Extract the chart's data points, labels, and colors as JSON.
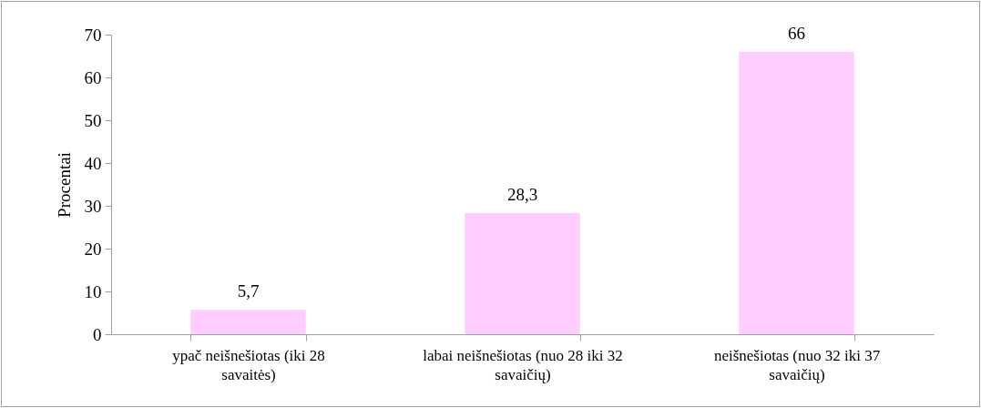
{
  "chart_data": {
    "type": "bar",
    "ylabel": "Procentai",
    "categories": [
      "ypač neišnešiotas (iki 28 savaitės)",
      "labai neišnešiotas (nuo 28 iki 32 savaičių)",
      "neišnešiotas (nuo 32 iki 37 savaičių)"
    ],
    "values": [
      5.7,
      28.3,
      66
    ],
    "value_labels": [
      "5,7",
      "28,3",
      "66"
    ],
    "color": "#ffccff",
    "ylim": [
      0,
      70
    ],
    "yticks": [
      0,
      10,
      20,
      30,
      40,
      50,
      60,
      70
    ],
    "grid": false
  }
}
